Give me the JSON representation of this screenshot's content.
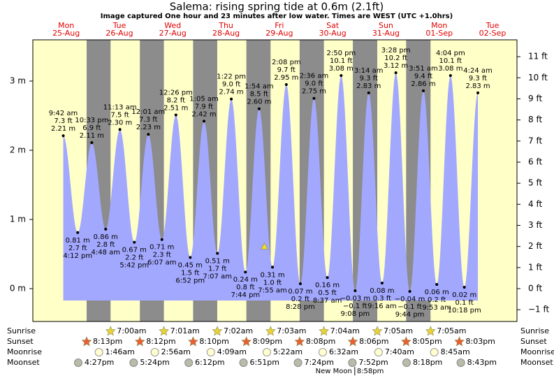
{
  "chart_data": {
    "type": "tide",
    "title": "Salema: rising  spring tide at 0.6m (2.1ft)",
    "subtitle": "Image captured One hour and 23 minutes after low water. Times are WEST (UTC +1.0hrs)",
    "xlim": [
      -4,
      214
    ],
    "ylim": [
      -0.475,
      3.596
    ],
    "yticks": [
      {
        "value": 0,
        "label": "0 m"
      },
      {
        "value": 1,
        "label": "1 m"
      },
      {
        "value": 2,
        "label": "2 m"
      },
      {
        "value": 3,
        "label": "3 m"
      }
    ],
    "y2lim": [
      -1.558,
      11.8
    ],
    "y2ticks": [
      {
        "value": -1,
        "label": "−1 ft"
      },
      {
        "value": 0,
        "label": "0 ft"
      },
      {
        "value": 1,
        "label": "1 ft"
      },
      {
        "value": 2,
        "label": "2 ft"
      },
      {
        "value": 3,
        "label": "3 ft"
      },
      {
        "value": 4,
        "label": "4 ft"
      },
      {
        "value": 5,
        "label": "5 ft"
      },
      {
        "value": 6,
        "label": "6 ft"
      },
      {
        "value": 7,
        "label": "7 ft"
      },
      {
        "value": 8,
        "label": "8 ft"
      },
      {
        "value": 9,
        "label": "9 ft"
      },
      {
        "value": 10,
        "label": "10 ft"
      },
      {
        "value": 11,
        "label": "11 ft"
      }
    ],
    "color": "#a3a8ff",
    "now": {
      "x": 100.3,
      "y": 0.6
    },
    "row_labels": {
      "sunrise": "Sunrise",
      "sunset": "Sunset",
      "moonrise": "Moonrise",
      "moonset": "Moonset"
    },
    "days": [
      {
        "weekday": "Mon",
        "date": "25-Aug",
        "tides": [
          {
            "time": "9:42 am",
            "height": 2.21,
            "height_label": "2.21 m",
            "feet": "7.3 ft"
          },
          {
            "time": "4:12 pm",
            "height": 0.81,
            "height_label": "0.81 m",
            "feet": "2.7 ft"
          },
          {
            "time": "10:33 pm",
            "height": 2.11,
            "height_label": "2.11 m",
            "feet": "6.9 ft"
          }
        ],
        "sunset": "8:13pm",
        "moonset": "4:27pm"
      },
      {
        "weekday": "Tue",
        "date": "26-Aug",
        "tides": [
          {
            "time": "4:48 am",
            "height": 0.86,
            "height_label": "0.86 m",
            "feet": "2.8 ft"
          },
          {
            "time": "11:13 am",
            "height": 2.3,
            "height_label": "2.30 m",
            "feet": "7.5 ft"
          },
          {
            "time": "5:42 pm",
            "height": 0.67,
            "height_label": "0.67 m",
            "feet": "2.2 ft"
          }
        ],
        "sunrise": "7:00am",
        "sunset": "8:12pm",
        "moonrise": "1:46am",
        "moonset": "5:24pm"
      },
      {
        "weekday": "Wed",
        "date": "27-Aug",
        "tides": [
          {
            "time": "12:01 am",
            "height": 2.23,
            "height_label": "2.23 m",
            "feet": "7.3 ft"
          },
          {
            "time": "6:07 am",
            "height": 0.71,
            "height_label": "0.71 m",
            "feet": "2.3 ft"
          },
          {
            "time": "12:26 pm",
            "height": 2.51,
            "height_label": "2.51 m",
            "feet": "8.2 ft"
          },
          {
            "time": "6:52 pm",
            "height": 0.45,
            "height_label": "0.45 m",
            "feet": "1.5 ft"
          }
        ],
        "sunrise": "7:01am",
        "sunset": "8:10pm",
        "moonrise": "2:56am",
        "moonset": "6:12pm"
      },
      {
        "weekday": "Thu",
        "date": "28-Aug",
        "tides": [
          {
            "time": "1:05 am",
            "height": 2.42,
            "height_label": "2.42 m",
            "feet": "7.9 ft"
          },
          {
            "time": "7:07 am",
            "height": 0.51,
            "height_label": "0.51 m",
            "feet": "1.7 ft"
          },
          {
            "time": "1:22 pm",
            "height": 2.74,
            "height_label": "2.74 m",
            "feet": "9.0 ft"
          },
          {
            "time": "7:44 pm",
            "height": 0.24,
            "height_label": "0.24 m",
            "feet": "0.8 ft"
          }
        ],
        "sunrise": "7:02am",
        "sunset": "8:09pm",
        "moonrise": "4:09am",
        "moonset": "6:51pm"
      },
      {
        "weekday": "Fri",
        "date": "29-Aug",
        "tides": [
          {
            "time": "1:54 am",
            "height": 2.6,
            "height_label": "2.60 m",
            "feet": "8.5 ft"
          },
          {
            "time": "7:55 am",
            "height": 0.31,
            "height_label": "0.31 m",
            "feet": "1.0 ft"
          },
          {
            "time": "2:08 pm",
            "height": 2.95,
            "height_label": "2.95 m",
            "feet": "9.7 ft"
          },
          {
            "time": "8:28 pm",
            "height": 0.07,
            "height_label": "0.07 m",
            "feet": "0.2 ft"
          }
        ],
        "sunrise": "7:03am",
        "sunset": "8:08pm",
        "moonrise": "5:22am",
        "moonset": "7:24pm"
      },
      {
        "weekday": "Sat",
        "date": "30-Aug",
        "tides": [
          {
            "time": "2:36 am",
            "height": 2.75,
            "height_label": "2.75 m",
            "feet": "9.0 ft"
          },
          {
            "time": "8:37 am",
            "height": 0.16,
            "height_label": "0.16 m",
            "feet": "0.5 ft"
          },
          {
            "time": "2:50 pm",
            "height": 3.08,
            "height_label": "3.08 m",
            "feet": "10.1 ft"
          },
          {
            "time": "9:08 pm",
            "height": -0.03,
            "height_label": "−0.03 m",
            "feet": "−0.1 ft"
          }
        ],
        "sunrise": "7:04am",
        "sunset": "8:06pm",
        "moonrise": "6:32am",
        "moonset": "7:52pm",
        "moon_phase": {
          "label": "New Moon",
          "time": "8:58pm"
        }
      },
      {
        "weekday": "Sun",
        "date": "31-Aug",
        "tides": [
          {
            "time": "3:14 am",
            "height": 2.83,
            "height_label": "2.83 m",
            "feet": "9.3 ft"
          },
          {
            "time": "9:16 am",
            "height": 0.08,
            "height_label": "0.08 m",
            "feet": "0.3 ft"
          },
          {
            "time": "3:28 pm",
            "height": 3.12,
            "height_label": "3.12 m",
            "feet": "10.2 ft"
          },
          {
            "time": "9:44 pm",
            "height": -0.04,
            "height_label": "−0.04 m",
            "feet": "−0.1 ft"
          }
        ],
        "sunrise": "7:05am",
        "sunset": "8:05pm",
        "moonrise": "7:40am",
        "moonset": "8:18pm"
      },
      {
        "weekday": "Mon",
        "date": "01-Sep",
        "tides": [
          {
            "time": "3:51 am",
            "height": 2.86,
            "height_label": "2.86 m",
            "feet": "9.4 ft"
          },
          {
            "time": "9:53 am",
            "height": 0.06,
            "height_label": "0.06 m",
            "feet": "0.2 ft"
          },
          {
            "time": "4:04 pm",
            "height": 3.08,
            "height_label": "3.08 m",
            "feet": "10.1 ft"
          },
          {
            "time": "10:18 pm",
            "height": 0.02,
            "height_label": "0.02 m",
            "feet": "0.1 ft"
          }
        ],
        "sunrise": "7:05am",
        "sunset": "8:03pm",
        "moonrise": "8:45am",
        "moonset": "8:43pm"
      },
      {
        "weekday": "Tue",
        "date": "02-Sep",
        "tides": [
          {
            "time": "4:24 am",
            "height": 2.83,
            "height_label": "2.83 m",
            "feet": "9.3 ft"
          }
        ]
      }
    ]
  }
}
